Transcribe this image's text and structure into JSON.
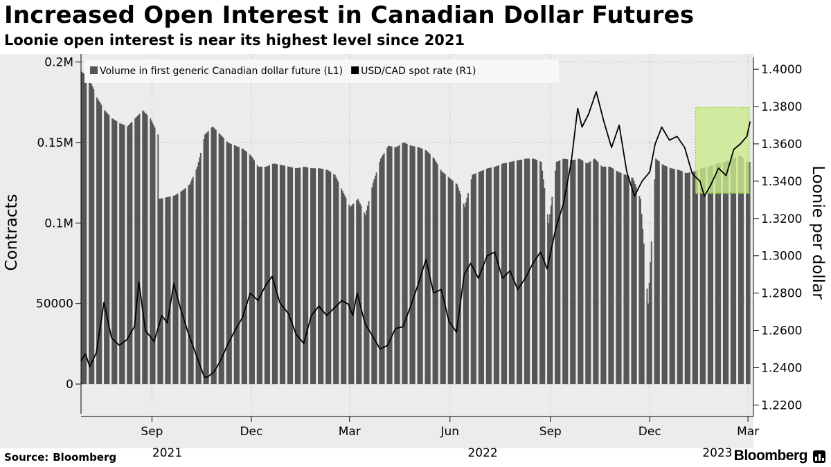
{
  "title": "Increased Open Interest in Canadian Dollar Futures",
  "subtitle": "Loonie open interest is near its highest level since 2021",
  "source": {
    "label": "Source:",
    "name": "Bloomberg"
  },
  "logo": "Bloomberg",
  "colors": {
    "bars": "#565656",
    "line": "#000000",
    "plot_background": "#ececec",
    "highlight_fill": "#c9ea8c",
    "highlight_border": "#9fd13b"
  },
  "chart_data": {
    "type": "bar+line",
    "legend": {
      "placement": "top-left",
      "items": [
        {
          "label": "Volume in first generic Canadian dollar future (L1)",
          "kind": "bar"
        },
        {
          "label": "USD/CAD spot rate (R1)",
          "kind": "line"
        }
      ]
    },
    "x_range": [
      "2021-06-28",
      "2023-03-06"
    ],
    "x_ticks": [
      {
        "date": "2021-09-01",
        "label": "Sep"
      },
      {
        "date": "2021-12-01",
        "label": "Dec"
      },
      {
        "date": "2022-03-01",
        "label": "Mar"
      },
      {
        "date": "2022-06-01",
        "label": "Jun"
      },
      {
        "date": "2022-09-01",
        "label": "Sep"
      },
      {
        "date": "2022-12-01",
        "label": "Dec"
      },
      {
        "date": "2023-03-01",
        "label": "Mar"
      }
    ],
    "year_labels": [
      {
        "date": "2021-09-15",
        "label": "2021"
      },
      {
        "date": "2022-07-01",
        "label": "2022"
      },
      {
        "date": "2023-02-01",
        "label": "2023"
      }
    ],
    "left_axis": {
      "title": "Contracts",
      "range": [
        -15000,
        205000
      ],
      "ticks": [
        {
          "value": 0,
          "label": "0"
        },
        {
          "value": 50000,
          "label": "50000"
        },
        {
          "value": 100000,
          "label": "0.1M"
        },
        {
          "value": 150000,
          "label": "0.15M"
        },
        {
          "value": 200000,
          "label": "0.2M"
        }
      ]
    },
    "right_axis": {
      "title": "Loonie per dollar",
      "range": [
        1.2183,
        1.4082
      ],
      "ticks": [
        {
          "value": 1.22,
          "label": "1.2200"
        },
        {
          "value": 1.24,
          "label": "1.2400"
        },
        {
          "value": 1.26,
          "label": "1.2600"
        },
        {
          "value": 1.28,
          "label": "1.2800"
        },
        {
          "value": 1.3,
          "label": "1.3000"
        },
        {
          "value": 1.32,
          "label": "1.3200"
        },
        {
          "value": 1.34,
          "label": "1.3400"
        },
        {
          "value": 1.36,
          "label": "1.3600"
        },
        {
          "value": 1.38,
          "label": "1.3800"
        },
        {
          "value": 1.4,
          "label": "1.4000"
        }
      ]
    },
    "highlight": {
      "x_start": "2023-01-12",
      "x_end": "2023-03-02",
      "y_low": 1.3335,
      "y_high": 1.3795
    },
    "grid": true,
    "volume_series": {
      "name": "Volume in first generic Canadian dollar future (L1)",
      "axis": "left",
      "points": [
        [
          "2021-06-28",
          194000
        ],
        [
          "2021-07-05",
          190000
        ],
        [
          "2021-07-12",
          178000
        ],
        [
          "2021-07-19",
          170000
        ],
        [
          "2021-07-26",
          165000
        ],
        [
          "2021-08-02",
          162000
        ],
        [
          "2021-08-09",
          160000
        ],
        [
          "2021-08-16",
          165000
        ],
        [
          "2021-08-23",
          170000
        ],
        [
          "2021-08-30",
          165000
        ],
        [
          "2021-09-06",
          155000
        ],
        [
          "2021-09-07",
          115000
        ],
        [
          "2021-09-14",
          116000
        ],
        [
          "2021-09-21",
          117000
        ],
        [
          "2021-09-28",
          120000
        ],
        [
          "2021-10-05",
          124000
        ],
        [
          "2021-10-12",
          135000
        ],
        [
          "2021-10-19",
          155000
        ],
        [
          "2021-10-26",
          160000
        ],
        [
          "2021-11-02",
          155000
        ],
        [
          "2021-11-09",
          150000
        ],
        [
          "2021-11-16",
          148000
        ],
        [
          "2021-11-23",
          146000
        ],
        [
          "2021-11-30",
          142000
        ],
        [
          "2021-12-07",
          135000
        ],
        [
          "2021-12-14",
          135000
        ],
        [
          "2021-12-21",
          137000
        ],
        [
          "2021-12-28",
          136000
        ],
        [
          "2022-01-04",
          135000
        ],
        [
          "2022-01-11",
          134000
        ],
        [
          "2022-01-18",
          135000
        ],
        [
          "2022-01-25",
          134000
        ],
        [
          "2022-02-01",
          134000
        ],
        [
          "2022-02-08",
          133000
        ],
        [
          "2022-02-15",
          130000
        ],
        [
          "2022-02-22",
          120000
        ],
        [
          "2022-03-01",
          110000
        ],
        [
          "2022-03-08",
          115000
        ],
        [
          "2022-03-15",
          105000
        ],
        [
          "2022-03-22",
          125000
        ],
        [
          "2022-03-29",
          140000
        ],
        [
          "2022-04-05",
          148000
        ],
        [
          "2022-04-12",
          147000
        ],
        [
          "2022-04-19",
          150000
        ],
        [
          "2022-04-26",
          148000
        ],
        [
          "2022-05-03",
          147000
        ],
        [
          "2022-05-10",
          145000
        ],
        [
          "2022-05-17",
          140000
        ],
        [
          "2022-05-24",
          132000
        ],
        [
          "2022-05-31",
          128000
        ],
        [
          "2022-06-07",
          124000
        ],
        [
          "2022-06-14",
          110000
        ],
        [
          "2022-06-21",
          130000
        ],
        [
          "2022-06-28",
          132000
        ],
        [
          "2022-07-05",
          134000
        ],
        [
          "2022-07-12",
          135000
        ],
        [
          "2022-07-19",
          137000
        ],
        [
          "2022-07-26",
          138000
        ],
        [
          "2022-08-02",
          139000
        ],
        [
          "2022-08-09",
          140000
        ],
        [
          "2022-08-16",
          140000
        ],
        [
          "2022-08-23",
          138000
        ],
        [
          "2022-08-30",
          100000
        ],
        [
          "2022-09-06",
          138000
        ],
        [
          "2022-09-13",
          140000
        ],
        [
          "2022-09-20",
          139000
        ],
        [
          "2022-09-27",
          140000
        ],
        [
          "2022-10-04",
          137000
        ],
        [
          "2022-10-11",
          140000
        ],
        [
          "2022-10-18",
          135000
        ],
        [
          "2022-10-25",
          135000
        ],
        [
          "2022-11-01",
          132000
        ],
        [
          "2022-11-08",
          130000
        ],
        [
          "2022-11-15",
          128000
        ],
        [
          "2022-11-22",
          115000
        ],
        [
          "2022-11-29",
          50000
        ],
        [
          "2022-12-06",
          140000
        ],
        [
          "2022-12-13",
          136000
        ],
        [
          "2022-12-20",
          134000
        ],
        [
          "2022-12-27",
          133000
        ],
        [
          "2023-01-03",
          131000
        ],
        [
          "2023-01-10",
          132000
        ],
        [
          "2023-01-17",
          134000
        ],
        [
          "2023-01-24",
          135000
        ],
        [
          "2023-01-31",
          137000
        ],
        [
          "2023-02-07",
          138000
        ],
        [
          "2023-02-14",
          140000
        ],
        [
          "2023-02-21",
          142000
        ],
        [
          "2023-02-28",
          138000
        ]
      ]
    },
    "spot_series": {
      "name": "USD/CAD spot rate (R1)",
      "axis": "right",
      "points": [
        [
          "2021-06-28",
          1.2435
        ],
        [
          "2021-07-02",
          1.2475
        ],
        [
          "2021-07-06",
          1.2405
        ],
        [
          "2021-07-12",
          1.248
        ],
        [
          "2021-07-19",
          1.275
        ],
        [
          "2021-07-26",
          1.256
        ],
        [
          "2021-08-02",
          1.252
        ],
        [
          "2021-08-09",
          1.255
        ],
        [
          "2021-08-16",
          1.262
        ],
        [
          "2021-08-20",
          1.286
        ],
        [
          "2021-08-26",
          1.26
        ],
        [
          "2021-09-03",
          1.254
        ],
        [
          "2021-09-10",
          1.268
        ],
        [
          "2021-09-15",
          1.264
        ],
        [
          "2021-09-21",
          1.285
        ],
        [
          "2021-09-27",
          1.272
        ],
        [
          "2021-10-04",
          1.259
        ],
        [
          "2021-10-12",
          1.246
        ],
        [
          "2021-10-19",
          1.235
        ],
        [
          "2021-10-22",
          1.235
        ],
        [
          "2021-10-28",
          1.238
        ],
        [
          "2021-11-03",
          1.244
        ],
        [
          "2021-11-09",
          1.252
        ],
        [
          "2021-11-16",
          1.26
        ],
        [
          "2021-11-23",
          1.267
        ],
        [
          "2021-11-30",
          1.28
        ],
        [
          "2021-12-07",
          1.276
        ],
        [
          "2021-12-14",
          1.284
        ],
        [
          "2021-12-20",
          1.289
        ],
        [
          "2021-12-27",
          1.275
        ],
        [
          "2022-01-04",
          1.269
        ],
        [
          "2022-01-11",
          1.258
        ],
        [
          "2022-01-18",
          1.253
        ],
        [
          "2022-01-25",
          1.268
        ],
        [
          "2022-02-01",
          1.273
        ],
        [
          "2022-02-08",
          1.268
        ],
        [
          "2022-02-15",
          1.272
        ],
        [
          "2022-02-22",
          1.276
        ],
        [
          "2022-02-28",
          1.274
        ],
        [
          "2022-03-04",
          1.268
        ],
        [
          "2022-03-08",
          1.28
        ],
        [
          "2022-03-15",
          1.264
        ],
        [
          "2022-03-22",
          1.257
        ],
        [
          "2022-03-29",
          1.25
        ],
        [
          "2022-04-05",
          1.252
        ],
        [
          "2022-04-12",
          1.261
        ],
        [
          "2022-04-19",
          1.262
        ],
        [
          "2022-04-26",
          1.273
        ],
        [
          "2022-05-03",
          1.285
        ],
        [
          "2022-05-10",
          1.298
        ],
        [
          "2022-05-17",
          1.28
        ],
        [
          "2022-05-24",
          1.282
        ],
        [
          "2022-05-31",
          1.265
        ],
        [
          "2022-06-07",
          1.259
        ],
        [
          "2022-06-14",
          1.29
        ],
        [
          "2022-06-20",
          1.296
        ],
        [
          "2022-06-27",
          1.288
        ],
        [
          "2022-07-05",
          1.3
        ],
        [
          "2022-07-12",
          1.302
        ],
        [
          "2022-07-19",
          1.288
        ],
        [
          "2022-07-26",
          1.292
        ],
        [
          "2022-08-02",
          1.282
        ],
        [
          "2022-08-09",
          1.288
        ],
        [
          "2022-08-16",
          1.296
        ],
        [
          "2022-08-23",
          1.302
        ],
        [
          "2022-08-29",
          1.293
        ],
        [
          "2022-09-06",
          1.315
        ],
        [
          "2022-09-13",
          1.328
        ],
        [
          "2022-09-20",
          1.35
        ],
        [
          "2022-09-26",
          1.379
        ],
        [
          "2022-09-30",
          1.369
        ],
        [
          "2022-10-06",
          1.376
        ],
        [
          "2022-10-13",
          1.388
        ],
        [
          "2022-10-20",
          1.372
        ],
        [
          "2022-10-27",
          1.358
        ],
        [
          "2022-11-03",
          1.37
        ],
        [
          "2022-11-10",
          1.345
        ],
        [
          "2022-11-17",
          1.332
        ],
        [
          "2022-11-24",
          1.34
        ],
        [
          "2022-12-01",
          1.345
        ],
        [
          "2022-12-06",
          1.36
        ],
        [
          "2022-12-12",
          1.369
        ],
        [
          "2022-12-19",
          1.362
        ],
        [
          "2022-12-26",
          1.364
        ],
        [
          "2023-01-02",
          1.358
        ],
        [
          "2023-01-09",
          1.344
        ],
        [
          "2023-01-16",
          1.34
        ],
        [
          "2023-01-20",
          1.332
        ],
        [
          "2023-01-26",
          1.338
        ],
        [
          "2023-02-02",
          1.347
        ],
        [
          "2023-02-09",
          1.343
        ],
        [
          "2023-02-16",
          1.357
        ],
        [
          "2023-02-22",
          1.36
        ],
        [
          "2023-02-28",
          1.364
        ],
        [
          "2023-03-03",
          1.372
        ]
      ]
    }
  }
}
